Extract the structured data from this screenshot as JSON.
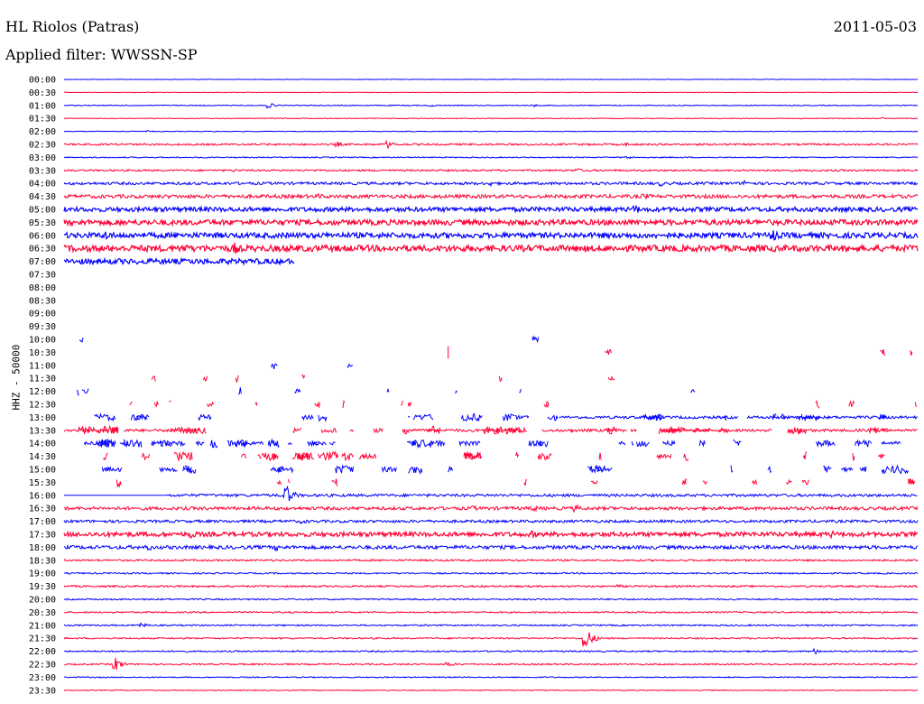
{
  "header": {
    "station": "HL Riolos (Patras)",
    "date": "2011-05-03",
    "filter": "Applied filter: WWSSN-SP"
  },
  "channel_label": "HHZ - 50000",
  "colors": {
    "even_row": "#0000ff",
    "odd_row": "#ff0033"
  },
  "chart_data": {
    "type": "line",
    "title": "HL Riolos (Patras)",
    "subtitle": "Applied filter: WWSSN-SP",
    "ylabel": "HHZ - 50000",
    "row_labels": [
      "00:00",
      "00:30",
      "01:00",
      "01:30",
      "02:00",
      "02:30",
      "03:00",
      "03:30",
      "04:00",
      "04:30",
      "05:00",
      "05:30",
      "06:00",
      "06:30",
      "07:00",
      "07:30",
      "08:00",
      "08:30",
      "09:00",
      "09:30",
      "10:00",
      "10:30",
      "11:00",
      "11:30",
      "12:00",
      "12:30",
      "13:00",
      "13:30",
      "14:00",
      "14:30",
      "15:00",
      "15:30",
      "16:00",
      "16:30",
      "17:00",
      "17:30",
      "18:00",
      "18:30",
      "19:00",
      "19:30",
      "20:00",
      "20:30",
      "21:00",
      "21:30",
      "22:00",
      "22:30",
      "23:00",
      "23:30"
    ],
    "row_span_minutes": 30,
    "grid": false,
    "rows": [
      {
        "mode": "cont",
        "noise": 0.3,
        "events": []
      },
      {
        "mode": "cont",
        "noise": 0.3,
        "events": []
      },
      {
        "mode": "cont",
        "noise": 0.5,
        "events": [
          [
            0.24,
            3
          ],
          [
            0.43,
            1.5
          ],
          [
            0.55,
            1.5
          ]
        ]
      },
      {
        "mode": "cont",
        "noise": 0.4,
        "events": [
          [
            0.96,
            1
          ]
        ]
      },
      {
        "mode": "cont",
        "noise": 0.4,
        "events": [
          [
            0.1,
            1
          ],
          [
            0.4,
            1
          ]
        ]
      },
      {
        "mode": "cont",
        "noise": 1.0,
        "events": [
          [
            0.32,
            3
          ],
          [
            0.38,
            4
          ],
          [
            0.66,
            2
          ]
        ]
      },
      {
        "mode": "cont",
        "noise": 0.6,
        "events": [
          [
            0.66,
            2
          ]
        ]
      },
      {
        "mode": "cont",
        "noise": 1.0,
        "events": [
          [
            0.2,
            2
          ],
          [
            0.6,
            3
          ],
          [
            0.3,
            2
          ]
        ]
      },
      {
        "mode": "cont",
        "noise": 1.5,
        "events": [
          [
            0.5,
            3
          ],
          [
            0.7,
            3
          ],
          [
            0.8,
            4
          ]
        ]
      },
      {
        "mode": "cont",
        "noise": 2.0,
        "events": [
          [
            0.2,
            3
          ],
          [
            0.3,
            3
          ],
          [
            0.68,
            4
          ]
        ]
      },
      {
        "mode": "cont",
        "noise": 2.5,
        "events": [
          [
            0.67,
            5
          ]
        ]
      },
      {
        "mode": "cont",
        "noise": 3.0,
        "events": []
      },
      {
        "mode": "cont",
        "noise": 3.0,
        "events": [
          [
            0.05,
            6
          ],
          [
            0.83,
            8
          ]
        ]
      },
      {
        "mode": "cont",
        "noise": 3.5,
        "events": [
          [
            0.14,
            6
          ],
          [
            0.2,
            7
          ],
          [
            0.69,
            3
          ]
        ]
      },
      {
        "mode": "partial",
        "end": 0.27,
        "noise": 3.0,
        "events": []
      },
      {
        "mode": "empty"
      },
      {
        "mode": "empty"
      },
      {
        "mode": "empty"
      },
      {
        "mode": "empty"
      },
      {
        "mode": "empty"
      },
      {
        "mode": "sparse",
        "density": 2,
        "events": []
      },
      {
        "mode": "sparse",
        "density": 3,
        "events": [
          [
            0.45,
            7
          ]
        ]
      },
      {
        "mode": "sparse",
        "density": 2,
        "events": []
      },
      {
        "mode": "sparse",
        "density": 6,
        "events": []
      },
      {
        "mode": "sparse",
        "density": 8,
        "events": []
      },
      {
        "mode": "sparse",
        "density": 14,
        "events": []
      },
      {
        "mode": "sparse13",
        "density": 20,
        "events": []
      },
      {
        "mode": "sparse13r",
        "density": 30,
        "events": []
      },
      {
        "mode": "sparse",
        "density": 35,
        "events": []
      },
      {
        "mode": "sparse",
        "density": 25,
        "events": []
      },
      {
        "mode": "sparse",
        "density": 20,
        "events": []
      },
      {
        "mode": "sparse",
        "density": 15,
        "events": []
      },
      {
        "mode": "cont16",
        "noise": 1.5,
        "events": [
          [
            0.26,
            12
          ]
        ]
      },
      {
        "mode": "cont",
        "noise": 1.8,
        "events": [
          [
            0.48,
            3
          ],
          [
            0.55,
            4
          ],
          [
            0.6,
            4
          ]
        ]
      },
      {
        "mode": "cont",
        "noise": 1.5,
        "events": [
          [
            0.28,
            3
          ]
        ]
      },
      {
        "mode": "cont",
        "noise": 2.5,
        "events": [
          [
            0.15,
            5
          ],
          [
            0.55,
            4
          ],
          [
            0.9,
            4
          ]
        ]
      },
      {
        "mode": "cont",
        "noise": 2.0,
        "events": [
          [
            0.1,
            4
          ],
          [
            0.25,
            4
          ]
        ]
      },
      {
        "mode": "cont",
        "noise": 1.0,
        "events": []
      },
      {
        "mode": "cont",
        "noise": 0.8,
        "events": []
      },
      {
        "mode": "cont",
        "noise": 1.0,
        "events": [
          [
            0.65,
            2
          ]
        ]
      },
      {
        "mode": "cont",
        "noise": 0.8,
        "events": []
      },
      {
        "mode": "cont",
        "noise": 0.8,
        "events": []
      },
      {
        "mode": "cont",
        "noise": 0.8,
        "events": [
          [
            0.09,
            3
          ]
        ]
      },
      {
        "mode": "cont",
        "noise": 0.8,
        "events": [
          [
            0.61,
            14
          ]
        ]
      },
      {
        "mode": "cont",
        "noise": 0.8,
        "events": [
          [
            0.88,
            3
          ]
        ]
      },
      {
        "mode": "cont",
        "noise": 0.8,
        "events": [
          [
            0.06,
            8
          ],
          [
            0.45,
            3
          ]
        ]
      },
      {
        "mode": "cont",
        "noise": 0.6,
        "events": []
      },
      {
        "mode": "cont",
        "noise": 0.5,
        "events": []
      }
    ]
  }
}
